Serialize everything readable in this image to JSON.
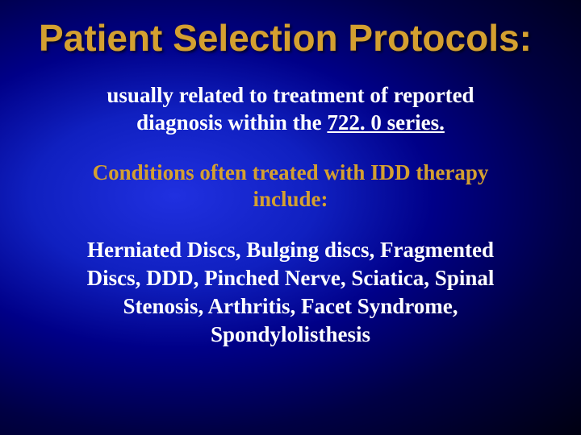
{
  "slide": {
    "title": "Patient Selection Protocols:",
    "para1_pre": "usually related to treatment of reported diagnosis within the ",
    "para1_underlined": "722. 0 series.",
    "para2": "Conditions often treated with IDD therapy include:",
    "para3": "Herniated Discs, Bulging discs, Fragmented Discs, DDD, Pinched Nerve, Sciatica, Spinal Stenosis, Arthritis, Facet Syndrome, Spondylolisthesis",
    "colors": {
      "title_color": "#d4a030",
      "body_white": "#ffffff",
      "body_gold": "#d4a030",
      "bg_inner": "#2030e0",
      "bg_outer": "#000011"
    },
    "typography": {
      "title_fontsize": 46,
      "body_fontsize": 27,
      "title_font": "Arial",
      "body_font": "Georgia/Times"
    }
  }
}
